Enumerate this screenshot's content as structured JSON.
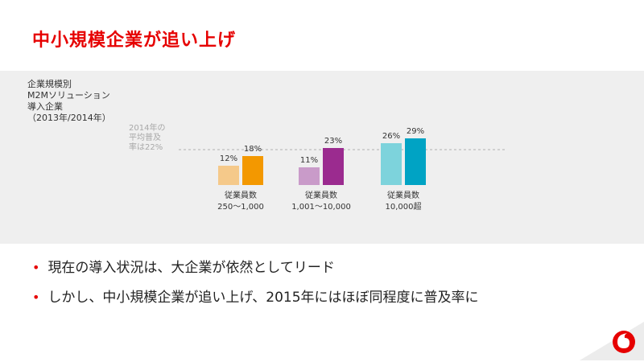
{
  "slide": {
    "title": "中小規模企業が追い上げ",
    "side_label": [
      "企業規模別",
      "M2Mソリューション",
      "導入企業",
      "（2013年/2014年）"
    ],
    "avg_note": [
      "2014年の",
      "平均普及",
      "率は22%"
    ],
    "bullets": [
      "現在の導入状況は、大企業が依然としてリード",
      "しかし、中小規模企業が追い上げ、2015年にはほぼ同程度に普及率に"
    ]
  },
  "colors": {
    "title": "#e60000",
    "g1_2013": "#f5c98a",
    "g1_2014": "#f39800",
    "g2_2013": "#c99bc9",
    "g2_2014": "#9b2b8f",
    "g3_2013": "#7dd3dc",
    "g3_2014": "#00a3c4",
    "avg_line": "#b0b0b0"
  },
  "chart_data": {
    "type": "bar",
    "categories": [
      [
        "従業員数",
        "250〜1,000"
      ],
      [
        "従業員数",
        "1,001〜10,000"
      ],
      [
        "従業員数",
        "10,000超"
      ]
    ],
    "series": [
      {
        "values": [
          12,
          11,
          26
        ]
      },
      {
        "values": [
          18,
          23,
          29
        ]
      }
    ],
    "value_labels": [
      [
        "12%",
        "18%"
      ],
      [
        "11%",
        "23%"
      ],
      [
        "26%",
        "29%"
      ]
    ],
    "average": 22,
    "unit": "%"
  }
}
